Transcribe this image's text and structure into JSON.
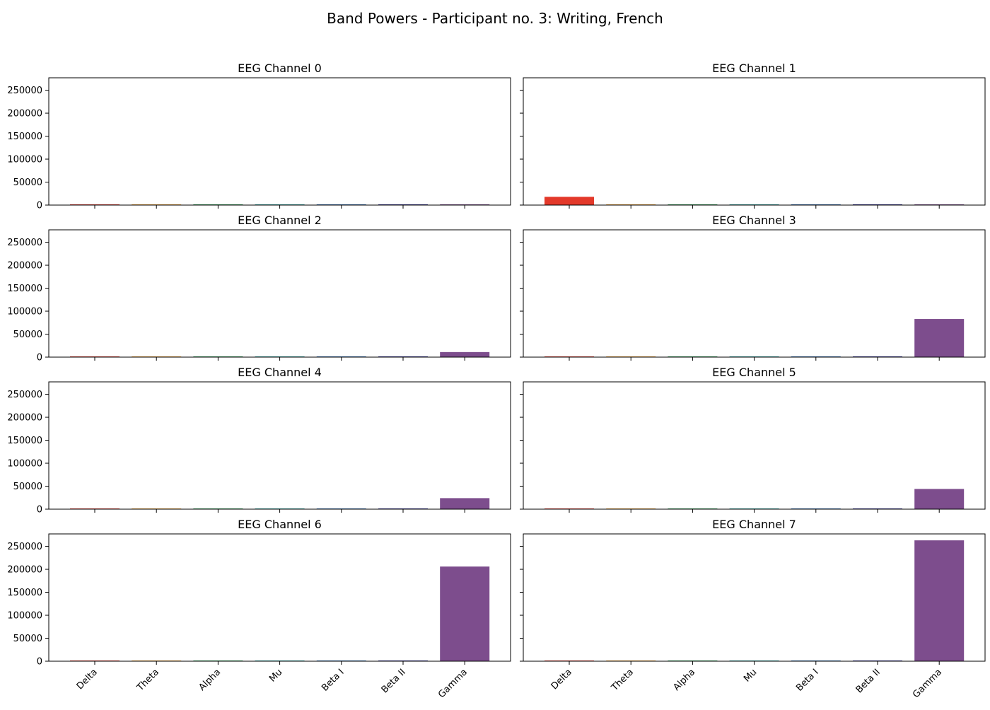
{
  "figure": {
    "title": "Band Powers - Participant no. 3: Writing, French"
  },
  "chart_data": {
    "type": "bar",
    "title": "Band Powers - Participant no. 3: Writing, French",
    "categories": [
      "Delta",
      "Theta",
      "Alpha",
      "Mu",
      "Beta I",
      "Beta II",
      "Gamma"
    ],
    "colors": [
      "#e3392a",
      "#f0a030",
      "#2a9d55",
      "#2aa3a0",
      "#2a6ab0",
      "#27288a",
      "#7d4d8d"
    ],
    "ylim": [
      0,
      277000
    ],
    "yticks": [
      0,
      50000,
      100000,
      150000,
      200000,
      250000
    ],
    "grid": false,
    "panels": [
      {
        "title": "EEG Channel 0",
        "values": [
          300,
          150,
          80,
          60,
          60,
          50,
          200
        ]
      },
      {
        "title": "EEG Channel 1",
        "values": [
          18000,
          800,
          600,
          300,
          300,
          200,
          900
        ]
      },
      {
        "title": "EEG Channel 2",
        "values": [
          1000,
          200,
          100,
          80,
          80,
          100,
          11000
        ]
      },
      {
        "title": "EEG Channel 3",
        "values": [
          1200,
          800,
          200,
          150,
          200,
          900,
          83000
        ]
      },
      {
        "title": "EEG Channel 4",
        "values": [
          800,
          200,
          100,
          80,
          80,
          100,
          24000
        ]
      },
      {
        "title": "EEG Channel 5",
        "values": [
          1000,
          200,
          100,
          80,
          80,
          100,
          44000
        ]
      },
      {
        "title": "EEG Channel 6",
        "values": [
          1000,
          400,
          200,
          200,
          700,
          800,
          206000
        ]
      },
      {
        "title": "EEG Channel 7",
        "values": [
          1200,
          600,
          200,
          600,
          800,
          900,
          263000
        ]
      }
    ]
  }
}
